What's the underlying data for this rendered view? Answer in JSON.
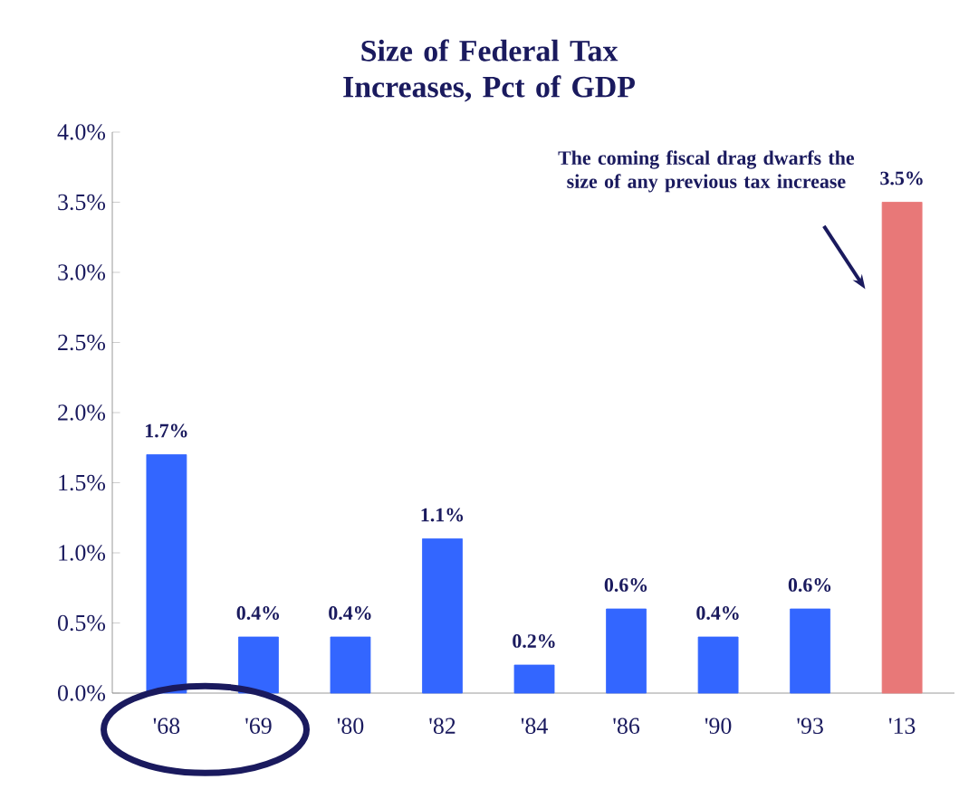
{
  "chart_data": {
    "type": "bar",
    "title": "Size of Federal Tax Increases, Pct of GDP",
    "categories": [
      "'68",
      "'69",
      "'80",
      "'82",
      "'84",
      "'86",
      "'90",
      "'93",
      "'13"
    ],
    "values": [
      1.7,
      0.4,
      0.4,
      1.1,
      0.2,
      0.6,
      0.4,
      0.6,
      3.5
    ],
    "value_labels": [
      "1.7%",
      "0.4%",
      "0.4%",
      "1.1%",
      "0.2%",
      "0.6%",
      "0.4%",
      "0.6%",
      "3.5%"
    ],
    "colors": [
      "#3366ff",
      "#3366ff",
      "#3366ff",
      "#3366ff",
      "#3366ff",
      "#3366ff",
      "#3366ff",
      "#3366ff",
      "#e87878"
    ],
    "ylim": [
      0,
      4
    ],
    "yticks": [
      {
        "value": 0,
        "label": "0.0%"
      },
      {
        "value": 0.5,
        "label": "0.5%"
      },
      {
        "value": 1,
        "label": "1.0%"
      },
      {
        "value": 1.5,
        "label": "1.5%"
      },
      {
        "value": 2,
        "label": "2.0%"
      },
      {
        "value": 2.5,
        "label": "2.5%"
      },
      {
        "value": 3,
        "label": "3.0%"
      },
      {
        "value": 3.5,
        "label": "3.5%"
      },
      {
        "value": 4,
        "label": "4.0%"
      }
    ],
    "annotations": [
      "The coming fiscal drag dwarfs the size of any previous tax increase"
    ]
  }
}
